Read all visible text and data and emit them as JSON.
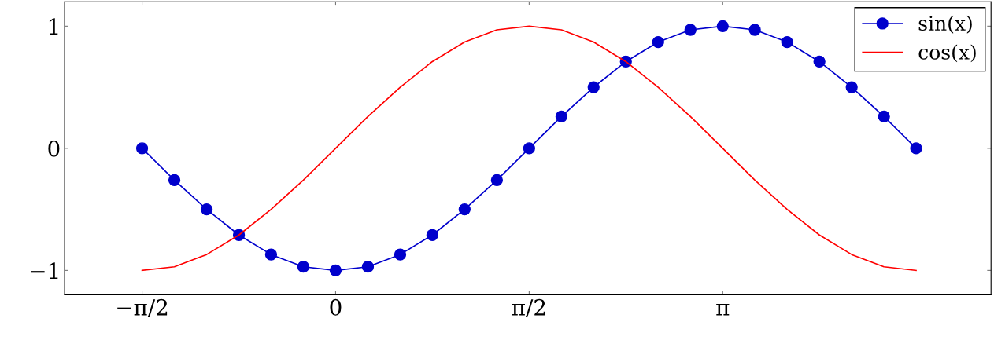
{
  "chart_data": {
    "type": "line",
    "x": [
      -1.571,
      -1.309,
      -1.047,
      -0.785,
      -0.524,
      -0.262,
      0,
      0.262,
      0.524,
      0.785,
      1.047,
      1.309,
      1.571,
      1.833,
      2.094,
      2.356,
      2.618,
      2.88,
      3.142,
      3.403,
      3.665,
      3.927,
      4.189,
      4.451,
      4.712
    ],
    "series": [
      {
        "name": "sin(x)",
        "color": "#0000cc",
        "marker": "circle",
        "values": [
          0,
          -0.26,
          -0.5,
          -0.71,
          -0.87,
          -0.97,
          -1,
          -0.97,
          -0.87,
          -0.71,
          -0.5,
          -0.26,
          0,
          0.26,
          0.5,
          0.71,
          0.87,
          0.97,
          1,
          0.97,
          0.87,
          0.71,
          0.5,
          0.26,
          0
        ]
      },
      {
        "name": "cos(x)",
        "color": "#ff0000",
        "marker": "none",
        "values": [
          -1,
          -0.97,
          -0.87,
          -0.71,
          -0.5,
          -0.26,
          0,
          0.26,
          0.5,
          0.71,
          0.87,
          0.97,
          1,
          0.97,
          0.87,
          0.71,
          0.5,
          0.26,
          0,
          -0.26,
          -0.5,
          -0.71,
          -0.87,
          -0.97,
          -1
        ]
      }
    ],
    "xlim": [
      -2.2,
      5.32
    ],
    "ylim": [
      -1.2,
      1.2
    ],
    "xticks": [
      {
        "value": -1.571,
        "label": "−π/2"
      },
      0,
      {
        "value": 1.571,
        "label": "π/2"
      },
      {
        "value": 3.142,
        "label": "π"
      }
    ],
    "yticks": [
      {
        "value": -1,
        "label": "−1"
      },
      0,
      1
    ],
    "grid": false,
    "legend": "top right",
    "line_style": "solid"
  }
}
